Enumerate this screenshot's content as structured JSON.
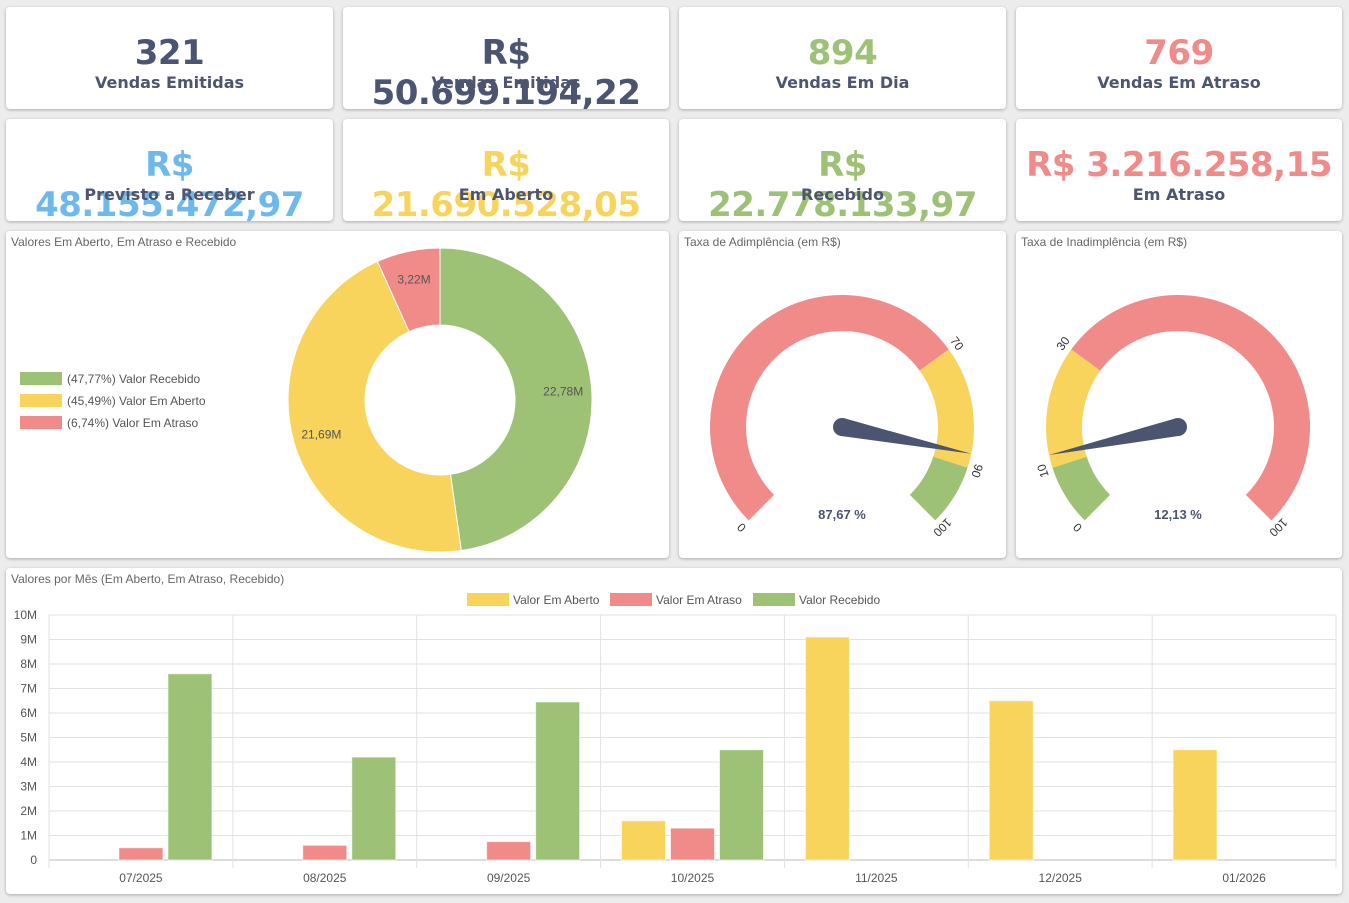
{
  "colors": {
    "dark": "#4b5572",
    "green": "#9dc276",
    "yellow": "#f8d45c",
    "red": "#f08b8a",
    "blue": "#6db9ee"
  },
  "kpis": [
    {
      "value": "321",
      "label": "Vendas Emitidas",
      "color": "#4b5572"
    },
    {
      "value": "R$ 50.699.194,22",
      "label": "Vendas Emitidas",
      "color": "#4b5572"
    },
    {
      "value": "894",
      "label": "Vendas Em Dia",
      "color": "#9dc276"
    },
    {
      "value": "769",
      "label": "Vendas Em Atraso",
      "color": "#f08b8a"
    },
    {
      "value": "R$ 48.155.472,97",
      "label": "Previsto a Receber",
      "color": "#6db9ee"
    },
    {
      "value": "R$ 21.690.528,05",
      "label": "Em Aberto",
      "color": "#f8d45c"
    },
    {
      "value": "R$ 22.778.133,97",
      "label": "Recebido",
      "color": "#9dc276"
    },
    {
      "value": "R$ 3.216.258,15",
      "label": "Em Atraso",
      "color": "#f08b8a"
    }
  ],
  "chart_data": [
    {
      "type": "pie",
      "variant": "doughnut",
      "title": "Valores Em Aberto, Em Atraso e Recebido",
      "legend_position": "left",
      "legend": [
        "(47,77%) Valor Recebido",
        "(45,49%) Valor Em Aberto",
        "(6,74%) Valor Em Atraso"
      ],
      "categories": [
        "Valor Recebido",
        "Valor Em Aberto",
        "Valor Em Atraso"
      ],
      "values": [
        22.78,
        21.69,
        3.22
      ],
      "value_labels": [
        "22,78M",
        "21,69M",
        "3,22M"
      ],
      "colors": [
        "#9dc276",
        "#f8d45c",
        "#f08b8a"
      ]
    },
    {
      "type": "gauge",
      "title": "Taxa de Adimplência (em R$)",
      "min": 0,
      "max": 100,
      "bands": [
        {
          "from": 0,
          "to": 70,
          "color": "#f08b8a"
        },
        {
          "from": 70,
          "to": 90,
          "color": "#f8d45c"
        },
        {
          "from": 90,
          "to": 100,
          "color": "#9dc276"
        }
      ],
      "ticks": [
        "0",
        "70",
        "90",
        "100"
      ],
      "tick_values": [
        0,
        70,
        90,
        100
      ],
      "value": 87.67,
      "value_label": "87,67 %"
    },
    {
      "type": "gauge",
      "title": "Taxa de Inadimplência (em R$)",
      "min": 0,
      "max": 100,
      "bands": [
        {
          "from": 0,
          "to": 10,
          "color": "#9dc276"
        },
        {
          "from": 10,
          "to": 30,
          "color": "#f8d45c"
        },
        {
          "from": 30,
          "to": 100,
          "color": "#f08b8a"
        }
      ],
      "ticks": [
        "0",
        "10",
        "30",
        "100"
      ],
      "tick_values": [
        0,
        10,
        30,
        100
      ],
      "value": 12.13,
      "value_label": "12,13 %"
    },
    {
      "type": "bar",
      "title": "Valores por Mês (Em Aberto, Em Atraso, Recebido)",
      "legend_position": "top",
      "categories": [
        "07/2025",
        "08/2025",
        "09/2025",
        "10/2025",
        "11/2025",
        "12/2025",
        "01/2026"
      ],
      "series": [
        {
          "name": "Valor Em Aberto",
          "color": "#f8d45c",
          "values": [
            0,
            0,
            0,
            1.6,
            9.1,
            6.5,
            4.5
          ]
        },
        {
          "name": "Valor Em Atraso",
          "color": "#f08b8a",
          "values": [
            0.5,
            0.6,
            0.75,
            1.3,
            0,
            0,
            0
          ]
        },
        {
          "name": "Valor Recebido",
          "color": "#9dc276",
          "values": [
            7.6,
            4.2,
            6.45,
            4.5,
            0,
            0,
            0
          ]
        }
      ],
      "ylim": [
        0,
        10
      ],
      "yticks": [
        0,
        1,
        2,
        3,
        4,
        5,
        6,
        7,
        8,
        9,
        10
      ],
      "ytick_labels": [
        "0",
        "1M",
        "2M",
        "3M",
        "4M",
        "5M",
        "6M",
        "7M",
        "8M",
        "9M",
        "10M"
      ],
      "grid": true,
      "xlabel": "",
      "ylabel": ""
    }
  ]
}
